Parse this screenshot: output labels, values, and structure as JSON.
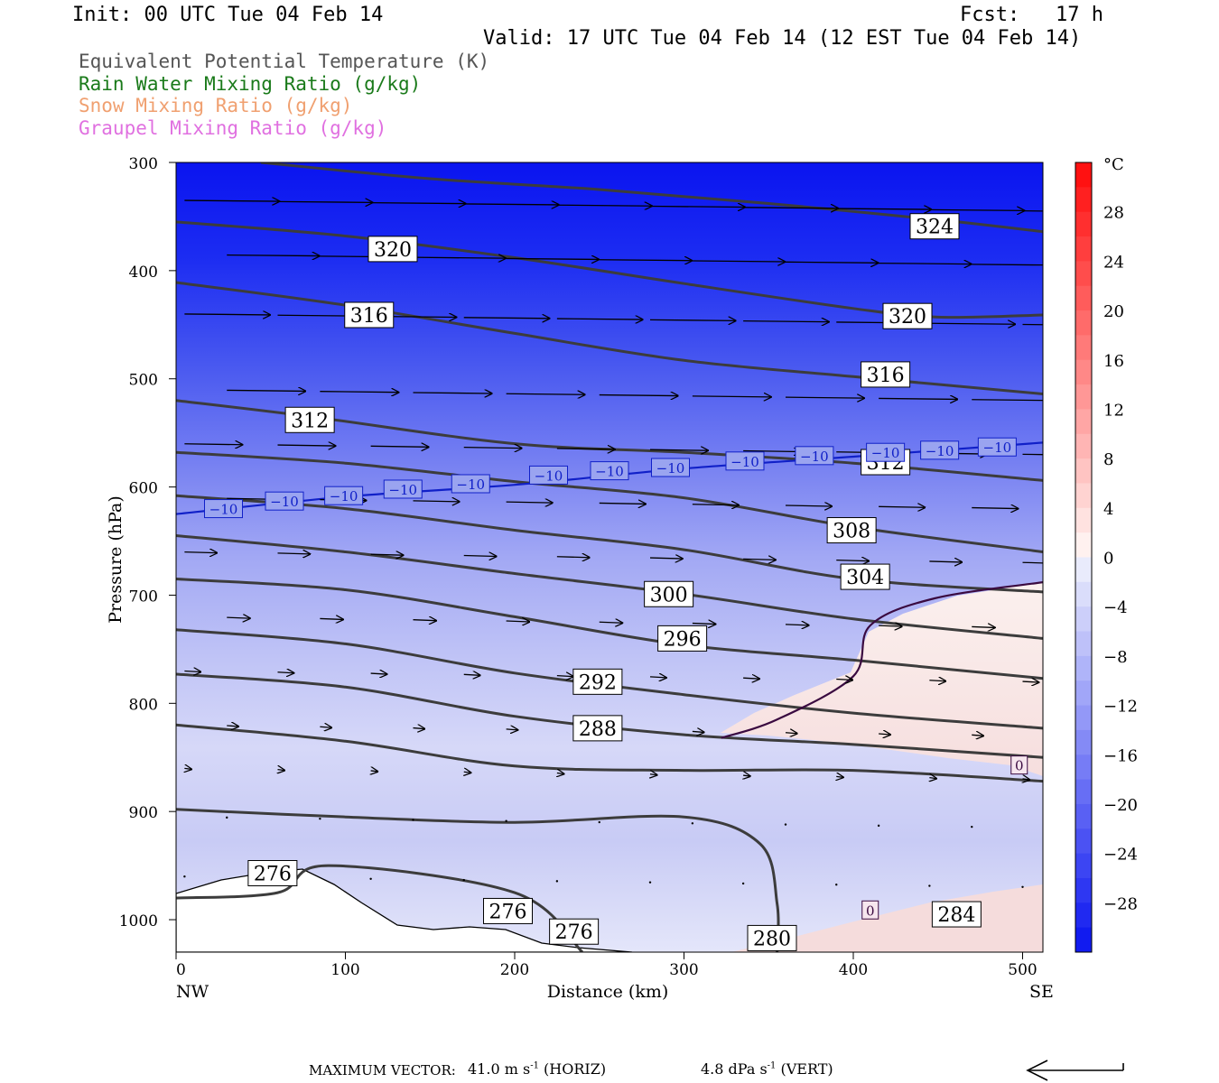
{
  "header": {
    "init": "Init: 00 UTC Tue 04 Feb 14",
    "fcst": "Fcst:   17 h",
    "valid": "Valid: 17 UTC Tue 04 Feb 14 (12 EST Tue 04 Feb 14)"
  },
  "legend": [
    {
      "label": "Equivalent Potential Temperature (K)",
      "color": "#555555"
    },
    {
      "label": "Rain Water Mixing Ratio (g/kg)",
      "color": "#1a7a1a"
    },
    {
      "label": "Snow Mixing Ratio (g/kg)",
      "color": "#f0a070"
    },
    {
      "label": "Graupel Mixing Ratio (g/kg)",
      "color": "#e070e0"
    }
  ],
  "chart_data": {
    "type": "cross-section",
    "xlabel": "Distance (km)",
    "ylabel": "Pressure (hPa)",
    "xlim": [
      0,
      512
    ],
    "ylim": [
      300,
      1030
    ],
    "x_ticks": [
      0,
      100,
      200,
      300,
      400,
      500
    ],
    "y_ticks": [
      300,
      400,
      500,
      600,
      700,
      800,
      900,
      1000
    ],
    "x_end_labels": {
      "left": "NW",
      "right": "SE"
    },
    "colorbar": {
      "unit": "°C",
      "ticks": [
        28,
        24,
        20,
        16,
        12,
        8,
        4,
        0,
        -4,
        -8,
        -12,
        -16,
        -20,
        -24,
        -28
      ],
      "tick_labels": [
        "28",
        "24",
        "20",
        "16",
        "12",
        "8",
        "4",
        "0",
        "−4",
        "−8",
        "−12",
        "−16",
        "−20",
        "−24",
        "−28"
      ],
      "range": [
        -32,
        32
      ]
    },
    "theta_e_contours": [
      {
        "level": 324,
        "label": "324",
        "pts": [
          [
            50,
            300
          ],
          [
            150,
            315
          ],
          [
            250,
            325
          ],
          [
            350,
            338
          ],
          [
            450,
            353
          ],
          [
            512,
            364
          ]
        ],
        "labels": [
          [
            448,
            359
          ]
        ]
      },
      {
        "level": 320,
        "label": "320",
        "pts": [
          [
            0,
            355
          ],
          [
            100,
            368
          ],
          [
            200,
            388
          ],
          [
            300,
            412
          ],
          [
            400,
            435
          ],
          [
            450,
            443
          ],
          [
            512,
            441
          ]
        ],
        "labels": [
          [
            128,
            380
          ],
          [
            432,
            442
          ]
        ]
      },
      {
        "level": 316,
        "label": "316",
        "pts": [
          [
            0,
            411
          ],
          [
            100,
            432
          ],
          [
            200,
            458
          ],
          [
            300,
            483
          ],
          [
            400,
            498
          ],
          [
            512,
            514
          ]
        ],
        "labels": [
          [
            114,
            441
          ],
          [
            419,
            496
          ]
        ]
      },
      {
        "level": 312,
        "label": "312",
        "pts": [
          [
            0,
            520
          ],
          [
            80,
            535
          ],
          [
            200,
            560
          ],
          [
            300,
            568
          ],
          [
            400,
            578
          ],
          [
            512,
            594
          ]
        ],
        "labels": [
          [
            79,
            538
          ],
          [
            419,
            577
          ]
        ]
      },
      {
        "level": 308,
        "label": "308",
        "pts": [
          [
            0,
            568
          ],
          [
            100,
            578
          ],
          [
            200,
            595
          ],
          [
            300,
            610
          ],
          [
            400,
            637
          ],
          [
            512,
            660
          ]
        ],
        "labels": [
          [
            399,
            640
          ]
        ]
      },
      {
        "level": 304,
        "label": "304",
        "pts": [
          [
            0,
            608
          ],
          [
            100,
            620
          ],
          [
            200,
            640
          ],
          [
            300,
            658
          ],
          [
            400,
            685
          ],
          [
            512,
            697
          ]
        ],
        "labels": [
          [
            407,
            683
          ]
        ]
      },
      {
        "level": 300,
        "label": "300",
        "pts": [
          [
            0,
            645
          ],
          [
            100,
            660
          ],
          [
            200,
            680
          ],
          [
            300,
            699
          ],
          [
            400,
            722
          ],
          [
            512,
            740
          ]
        ],
        "labels": [
          [
            291,
            699
          ]
        ]
      },
      {
        "level": 296,
        "label": "296",
        "pts": [
          [
            0,
            685
          ],
          [
            100,
            695
          ],
          [
            200,
            720
          ],
          [
            300,
            746
          ],
          [
            400,
            760
          ],
          [
            512,
            777
          ]
        ],
        "labels": [
          [
            299,
            740
          ]
        ]
      },
      {
        "level": 292,
        "label": "292",
        "pts": [
          [
            0,
            732
          ],
          [
            100,
            745
          ],
          [
            200,
            772
          ],
          [
            300,
            792
          ],
          [
            400,
            809
          ],
          [
            512,
            823
          ]
        ],
        "labels": [
          [
            249,
            780
          ]
        ]
      },
      {
        "level": 288,
        "label": "288",
        "pts": [
          [
            0,
            773
          ],
          [
            100,
            785
          ],
          [
            200,
            812
          ],
          [
            300,
            829
          ],
          [
            400,
            838
          ],
          [
            512,
            850
          ]
        ],
        "labels": [
          [
            249,
            823
          ]
        ]
      },
      {
        "level": 284,
        "label": "284",
        "pts": [
          [
            0,
            820
          ],
          [
            100,
            835
          ],
          [
            200,
            858
          ],
          [
            300,
            862
          ],
          [
            400,
            862
          ],
          [
            512,
            872
          ]
        ],
        "labels": [
          [
            461,
            995
          ]
        ]
      },
      {
        "level": 280,
        "label": "280",
        "pts": [
          [
            0,
            898
          ],
          [
            100,
            905
          ],
          [
            200,
            910
          ],
          [
            300,
            905
          ],
          [
            345,
            930
          ],
          [
            355,
            985
          ],
          [
            355,
            1030
          ]
        ],
        "labels": [
          [
            352,
            1017
          ]
        ]
      },
      {
        "level": 276,
        "label": "276",
        "pts": [
          [
            0,
            980
          ],
          [
            60,
            975
          ],
          [
            90,
            950
          ],
          [
            200,
            975
          ],
          [
            240,
            1030
          ]
        ],
        "labels": [
          [
            57,
            957
          ],
          [
            196,
            992
          ],
          [
            235,
            1011
          ]
        ]
      }
    ],
    "temperature_contours": [
      {
        "level": -10,
        "label": "−10",
        "pts": [
          [
            0,
            625
          ],
          [
            100,
            609
          ],
          [
            200,
            598
          ],
          [
            300,
            583
          ],
          [
            400,
            572
          ],
          [
            512,
            559
          ]
        ],
        "labels": [
          [
            28,
            620
          ],
          [
            64,
            613
          ],
          [
            99,
            608
          ],
          [
            134,
            602
          ],
          [
            174,
            597
          ],
          [
            220,
            589
          ],
          [
            256,
            585
          ],
          [
            292,
            582
          ],
          [
            336,
            576
          ],
          [
            377,
            571
          ],
          [
            419,
            568
          ],
          [
            451,
            566
          ],
          [
            485,
            563
          ]
        ]
      },
      {
        "level": 0,
        "label": "0",
        "pts": [
          [
            322,
            832
          ],
          [
            355,
            815
          ],
          [
            400,
            775
          ],
          [
            410,
            728
          ],
          [
            448,
            703
          ],
          [
            512,
            688
          ]
        ],
        "labels": [
          [
            498,
            857
          ],
          [
            410,
            991
          ]
        ]
      }
    ],
    "vector_rows": [
      {
        "p": 335,
        "u": 41.0
      },
      {
        "p": 385,
        "u": 40.0
      },
      {
        "p": 440,
        "u": 37.0
      },
      {
        "p": 510,
        "u": 34.0
      },
      {
        "p": 560,
        "u": 25.0
      },
      {
        "p": 610,
        "u": 20.0
      },
      {
        "p": 660,
        "u": 14.0
      },
      {
        "p": 720,
        "u": 10.0
      },
      {
        "p": 770,
        "u": 7.0
      },
      {
        "p": 820,
        "u": 5.0
      },
      {
        "p": 860,
        "u": 3.0
      },
      {
        "p": 905,
        "u": 1.0
      },
      {
        "p": 960,
        "u": 0.5
      }
    ],
    "max_vector": {
      "horiz": 41.0,
      "vert": 4.8
    }
  },
  "footer": {
    "max_vector_label": "MAXIMUM VECTOR:",
    "horiz_value": "41.0 m s",
    "horiz_unit": "(HORIZ)",
    "vert_value": "4.8 dPa s",
    "vert_unit": "(VERT)",
    "exp": "-1"
  }
}
